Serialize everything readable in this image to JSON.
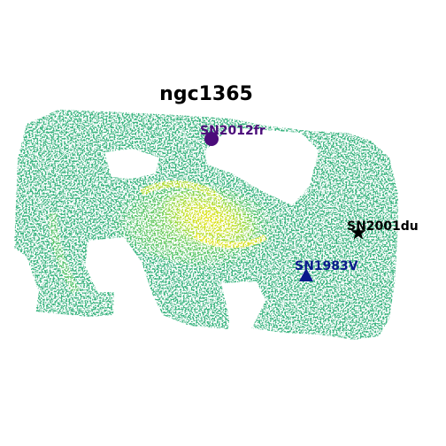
{
  "title": "ngc1365",
  "colormap": [
    "#3b8b8c",
    "#2fa687",
    "#3cbc75",
    "#5ec962",
    "#8fd744",
    "#c2df23",
    "#e7e419"
  ],
  "supernovae": [
    {
      "label": "SN2012fr",
      "marker": "circle",
      "color": "#4b0c7a"
    },
    {
      "label": "SN2001du",
      "marker": "star",
      "color": "#000000"
    },
    {
      "label": "SN1983V",
      "marker": "triangle",
      "color": "#0a1a8c"
    }
  ]
}
